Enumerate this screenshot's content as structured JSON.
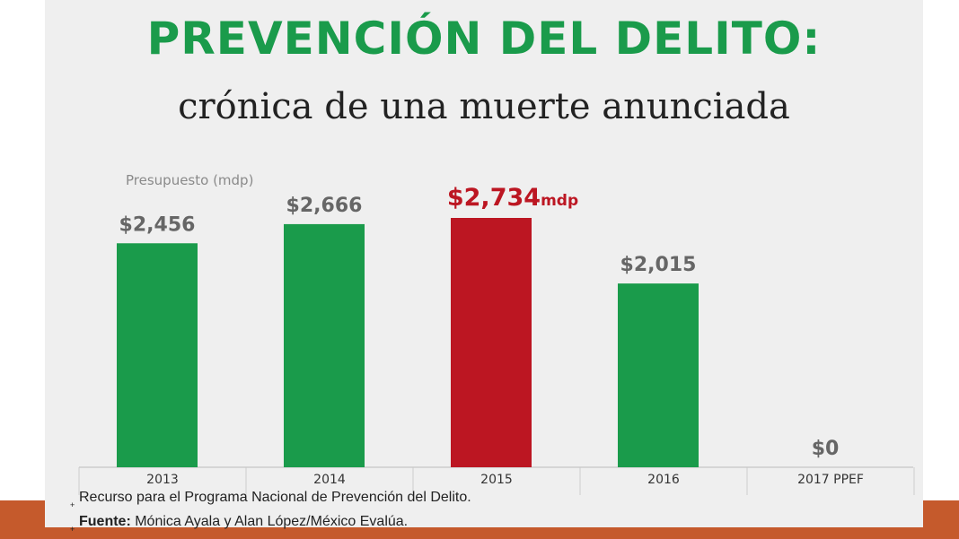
{
  "title": "PREVENCIÓN DEL DELITO:",
  "subtitle": "crónica de una muerte anunciada",
  "chart_data": {
    "type": "bar",
    "ylabel": "Presupuesto (mdp)",
    "categories": [
      "2013",
      "2014",
      "2015",
      "2016",
      "2017 PPEF"
    ],
    "values": [
      2456,
      2666,
      2734,
      2015,
      0
    ],
    "value_labels": [
      "$2,456",
      "$2,666",
      "$2,734",
      "$2,015",
      "$0"
    ],
    "highlight_suffix": "mdp",
    "highlight_index": 2,
    "colors": {
      "bar": "#1a9b4b",
      "highlight": "#bc1622",
      "label": "#666666"
    }
  },
  "notes": {
    "line1": "Recurso para el Programa Nacional de Prevención del Delito.",
    "source_label": "Fuente:",
    "source_text": " Mónica Ayala y Alan López/México Evalúa."
  }
}
